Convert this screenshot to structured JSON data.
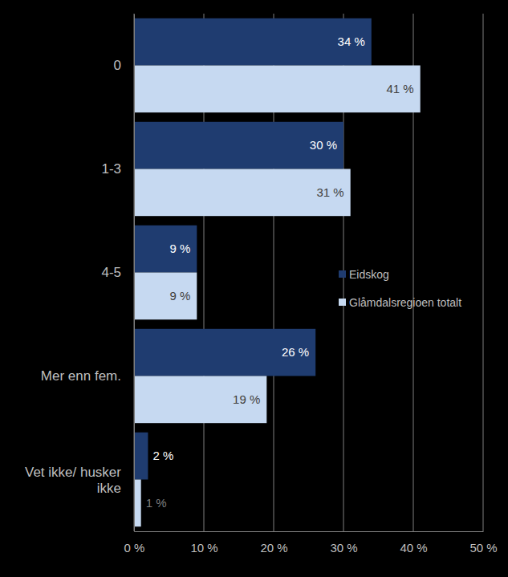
{
  "chart_data": {
    "type": "bar",
    "orientation": "horizontal",
    "categories": [
      "0",
      "1-3",
      "4-5",
      "Mer enn fem.",
      "Vet ikke/ husker ikke"
    ],
    "series": [
      {
        "name": "Eidskog",
        "color": "#1f3c70",
        "values": [
          34,
          30,
          9,
          26,
          2
        ],
        "value_labels": [
          "34 %",
          "30 %",
          "9 %",
          "26 %",
          "2 %"
        ]
      },
      {
        "name": "Glåmdalsregioen totalt",
        "color": "#c6d9f1",
        "values": [
          41,
          31,
          9,
          19,
          1
        ],
        "value_labels": [
          "41 %",
          "31 %",
          "9 %",
          "19 %",
          "1 %"
        ]
      }
    ],
    "xlim": [
      0,
      50
    ],
    "xticks": [
      {
        "value": 0,
        "label": "0 %"
      },
      {
        "value": 10,
        "label": "10 %"
      },
      {
        "value": 20,
        "label": "20 %"
      },
      {
        "value": 30,
        "label": "30 %"
      },
      {
        "value": 40,
        "label": "40 %"
      },
      {
        "value": 50,
        "label": "50 %"
      }
    ],
    "grid": true,
    "legend": "right",
    "data_labels": true
  }
}
